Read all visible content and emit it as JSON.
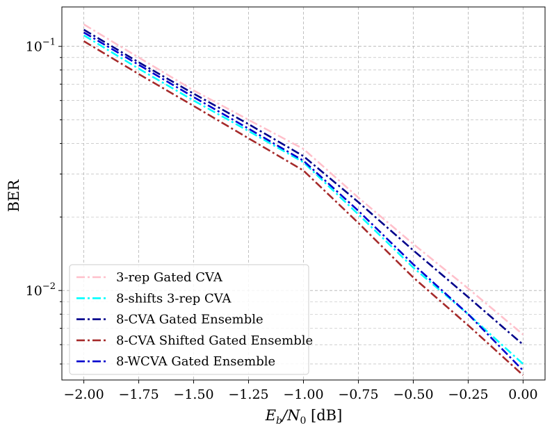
{
  "chart_data": {
    "type": "line",
    "xlabel": {
      "base": "E",
      "sub1": "b",
      "mid": "/N",
      "sub2": "0",
      "suffix": " [dB]"
    },
    "ylabel": "BER",
    "xlim": [
      -2.1,
      0.1
    ],
    "ylim": [
      0.0043,
      0.145
    ],
    "yscale": "log",
    "grid": true,
    "legend_position": "lower-left",
    "x_ticks": [
      "−2.00",
      "−1.75",
      "−1.50",
      "−1.25",
      "−1.00",
      "−0.75",
      "−0.50",
      "−0.25",
      "0.00"
    ],
    "y_ticks": [
      {
        "base": "10",
        "exp": "−1"
      },
      {
        "base": "10",
        "exp": "−2"
      }
    ],
    "x": [
      -2.0,
      -1.75,
      -1.5,
      -1.25,
      -1.0,
      -0.75,
      -0.5,
      -0.25,
      0.0
    ],
    "series": [
      {
        "name": "3-rep Gated CVA",
        "color": "#FFC0CB",
        "values": [
          0.123,
          0.09,
          0.066,
          0.05,
          0.038,
          0.024,
          0.0155,
          0.0102,
          0.0066
        ]
      },
      {
        "name": "8-shifts 3-rep CVA",
        "color": "#00FFFF",
        "values": [
          0.111,
          0.081,
          0.06,
          0.045,
          0.0335,
          0.0205,
          0.0124,
          0.008,
          0.005
        ]
      },
      {
        "name": "8-CVA Gated Ensemble",
        "color": "#00008B",
        "values": [
          0.117,
          0.086,
          0.064,
          0.048,
          0.0355,
          0.023,
          0.0146,
          0.0094,
          0.006
        ]
      },
      {
        "name": "8-CVA Shifted Gated Ensemble",
        "color": "#A52A2A",
        "values": [
          0.105,
          0.077,
          0.057,
          0.042,
          0.031,
          0.0189,
          0.0113,
          0.0072,
          0.0045
        ]
      },
      {
        "name": "8-WCVA Gated Ensemble",
        "color": "#0000CD",
        "values": [
          0.114,
          0.084,
          0.062,
          0.046,
          0.034,
          0.0212,
          0.0128,
          0.008,
          0.0047
        ]
      }
    ]
  }
}
